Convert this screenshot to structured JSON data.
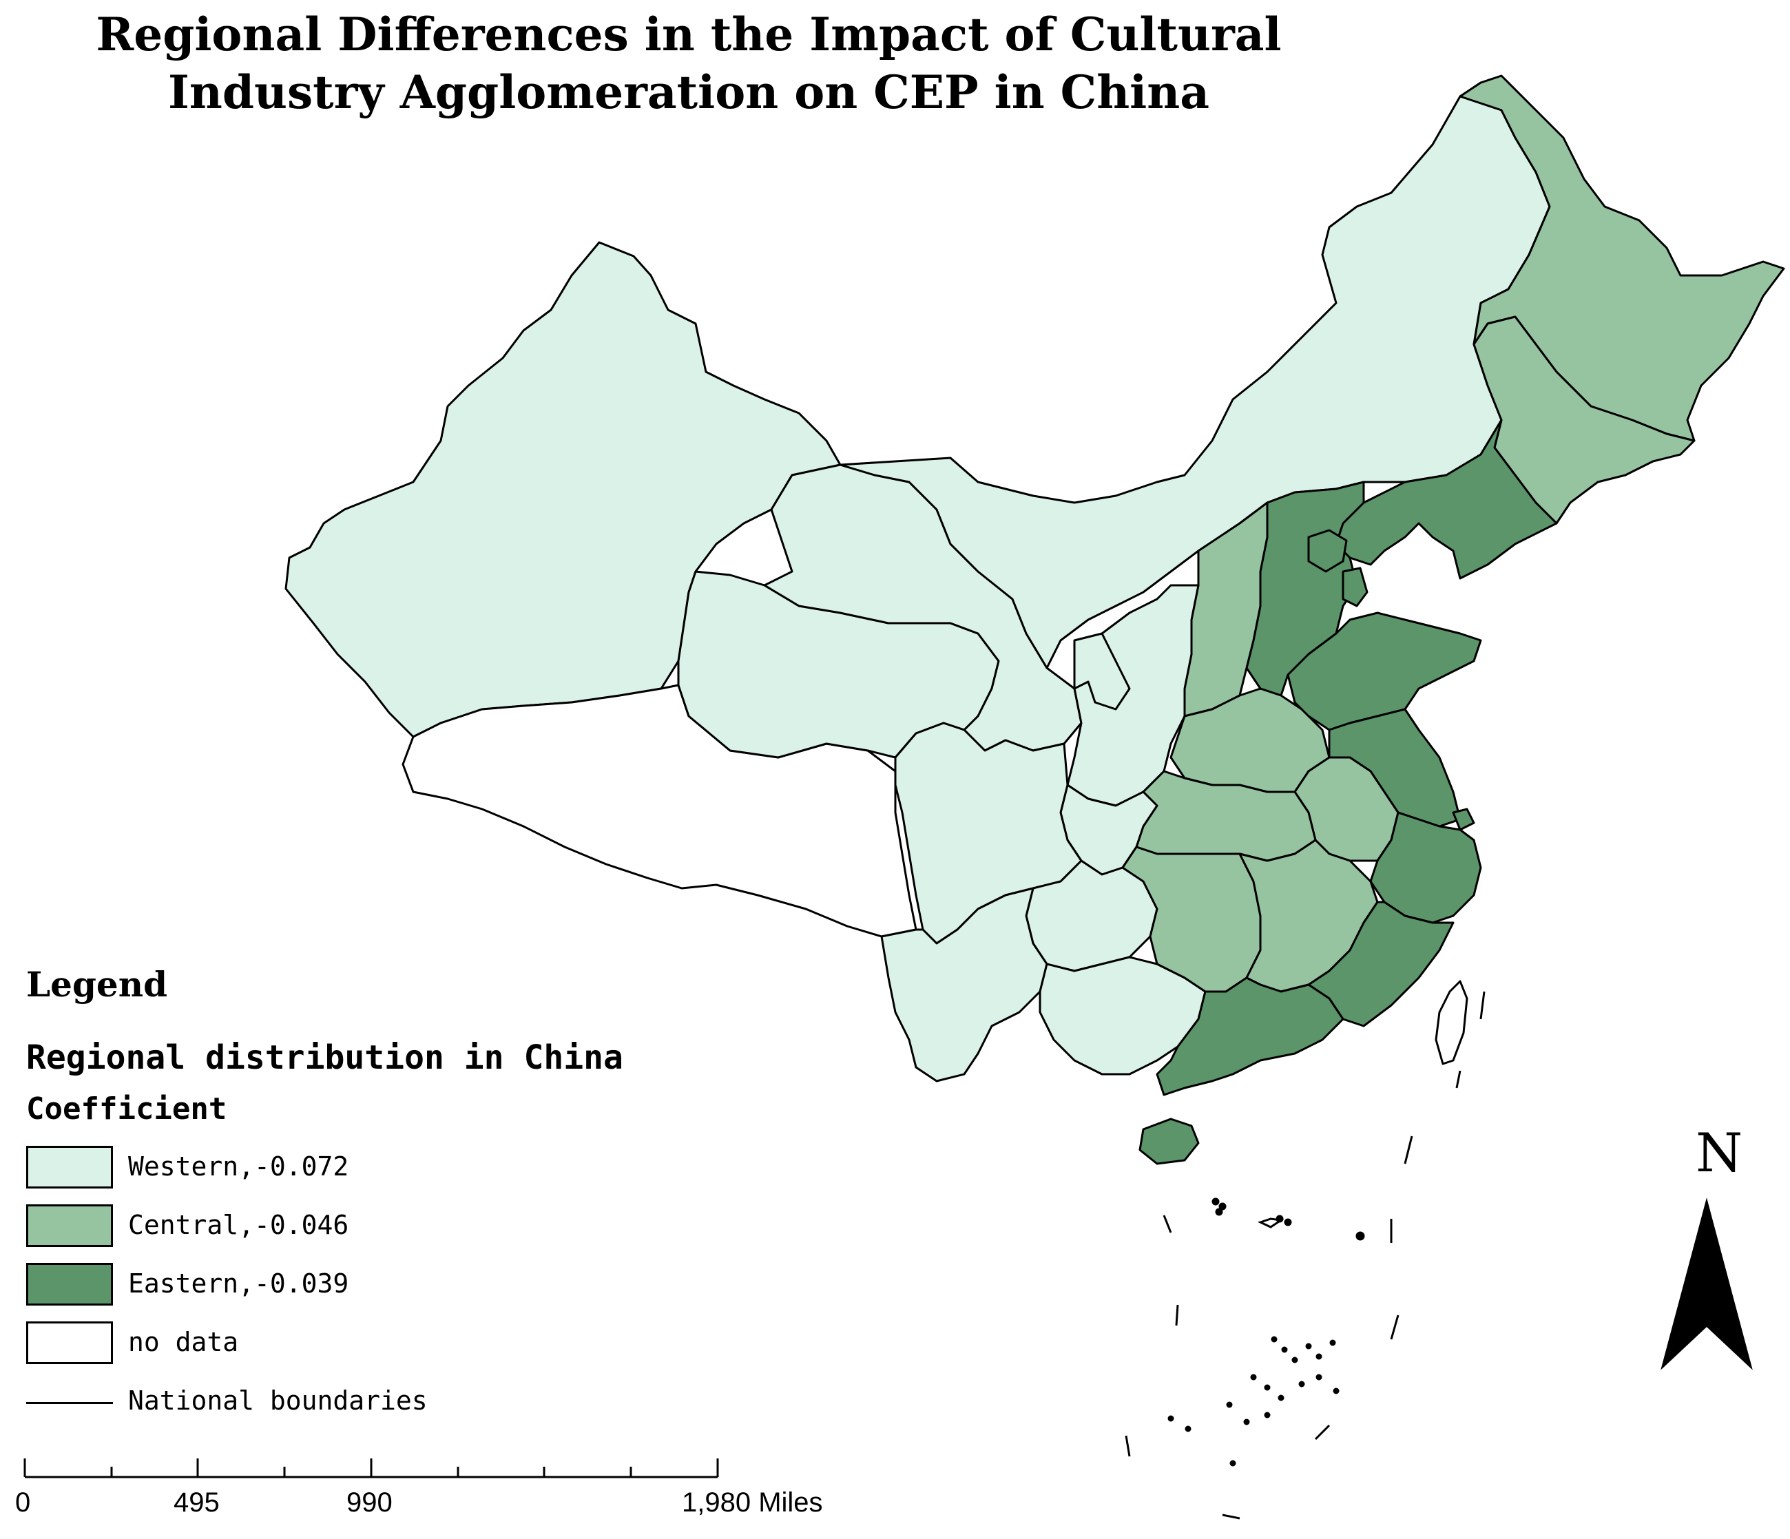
{
  "map": {
    "title": "Regional Differences in the Impact of Cultural Industry Agglomeration on CEP in China",
    "legend": {
      "heading": "Legend",
      "subtitle": "Regional distribution in China",
      "field": "Coefficient",
      "items": [
        {
          "label": "Western,-0.072",
          "color": "#dbf2e8"
        },
        {
          "label": "Central,-0.046",
          "color": "#96c3a0"
        },
        {
          "label": "Eastern,-0.039",
          "color": "#5b9569"
        },
        {
          "label": "no data",
          "color": "#ffffff"
        }
      ],
      "boundary_label": "National boundaries"
    },
    "scale_bar": {
      "ticks": [
        "0",
        "495",
        "990",
        "1,980 Miles"
      ]
    },
    "north_arrow": "N",
    "regions": [
      {
        "name": "Xinjiang",
        "class": "Western"
      },
      {
        "name": "Tibet",
        "class": "no data"
      },
      {
        "name": "Qinghai",
        "class": "Western"
      },
      {
        "name": "Gansu",
        "class": "Western"
      },
      {
        "name": "Inner Mongolia",
        "class": "Western"
      },
      {
        "name": "Ningxia",
        "class": "Western"
      },
      {
        "name": "Shaanxi",
        "class": "Western"
      },
      {
        "name": "Sichuan",
        "class": "Western"
      },
      {
        "name": "Chongqing",
        "class": "Western"
      },
      {
        "name": "Yunnan",
        "class": "Western"
      },
      {
        "name": "Guizhou",
        "class": "Western"
      },
      {
        "name": "Guangxi",
        "class": "Western"
      },
      {
        "name": "Heilongjiang",
        "class": "Central"
      },
      {
        "name": "Jilin",
        "class": "Central"
      },
      {
        "name": "Shanxi",
        "class": "Central"
      },
      {
        "name": "Henan",
        "class": "Central"
      },
      {
        "name": "Hubei",
        "class": "Central"
      },
      {
        "name": "Hunan",
        "class": "Central"
      },
      {
        "name": "Anhui",
        "class": "Central"
      },
      {
        "name": "Jiangxi",
        "class": "Central"
      },
      {
        "name": "Liaoning",
        "class": "Eastern"
      },
      {
        "name": "Hebei",
        "class": "Eastern"
      },
      {
        "name": "Beijing",
        "class": "Eastern"
      },
      {
        "name": "Tianjin",
        "class": "Eastern"
      },
      {
        "name": "Shandong",
        "class": "Eastern"
      },
      {
        "name": "Jiangsu",
        "class": "Eastern"
      },
      {
        "name": "Shanghai",
        "class": "Eastern"
      },
      {
        "name": "Zhejiang",
        "class": "Eastern"
      },
      {
        "name": "Fujian",
        "class": "Eastern"
      },
      {
        "name": "Guangdong",
        "class": "Eastern"
      },
      {
        "name": "Hainan",
        "class": "Eastern"
      },
      {
        "name": "Taiwan",
        "class": "no data"
      }
    ]
  }
}
